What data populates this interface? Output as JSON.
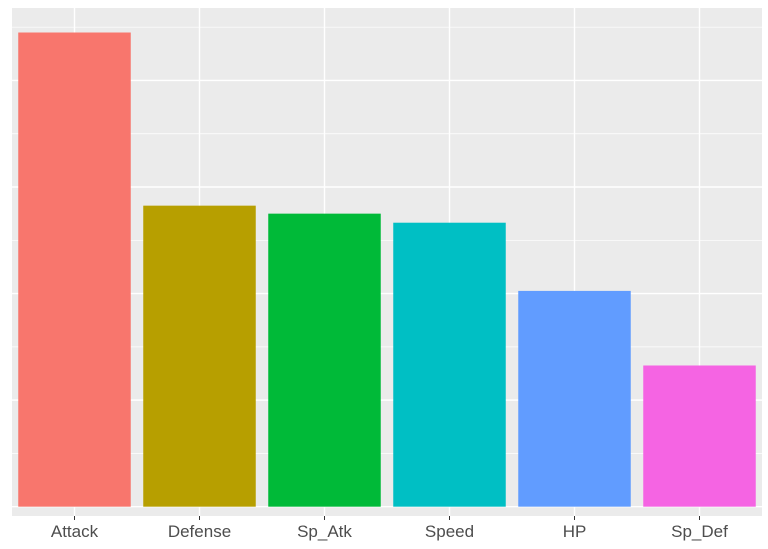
{
  "chart_data": {
    "type": "bar",
    "title": "",
    "xlabel": "",
    "ylabel": "",
    "categories": [
      "Attack",
      "Defense",
      "Sp_Atk",
      "Speed",
      "HP",
      "Sp_Def"
    ],
    "values": [
      89,
      56.5,
      55,
      53.3,
      40.5,
      26.5
    ],
    "colors": [
      "#F8766D",
      "#B79F00",
      "#00BA38",
      "#00BFC4",
      "#619CFF",
      "#F564E3"
    ],
    "ylim": [
      -1.75,
      93.6
    ],
    "y_gridlines": [
      0,
      20,
      40,
      60,
      80
    ],
    "y_tick_labels_shown": false,
    "grid": true,
    "legend": "none",
    "panel_background": "#EBEBEB",
    "grid_color": "#FFFFFF"
  }
}
